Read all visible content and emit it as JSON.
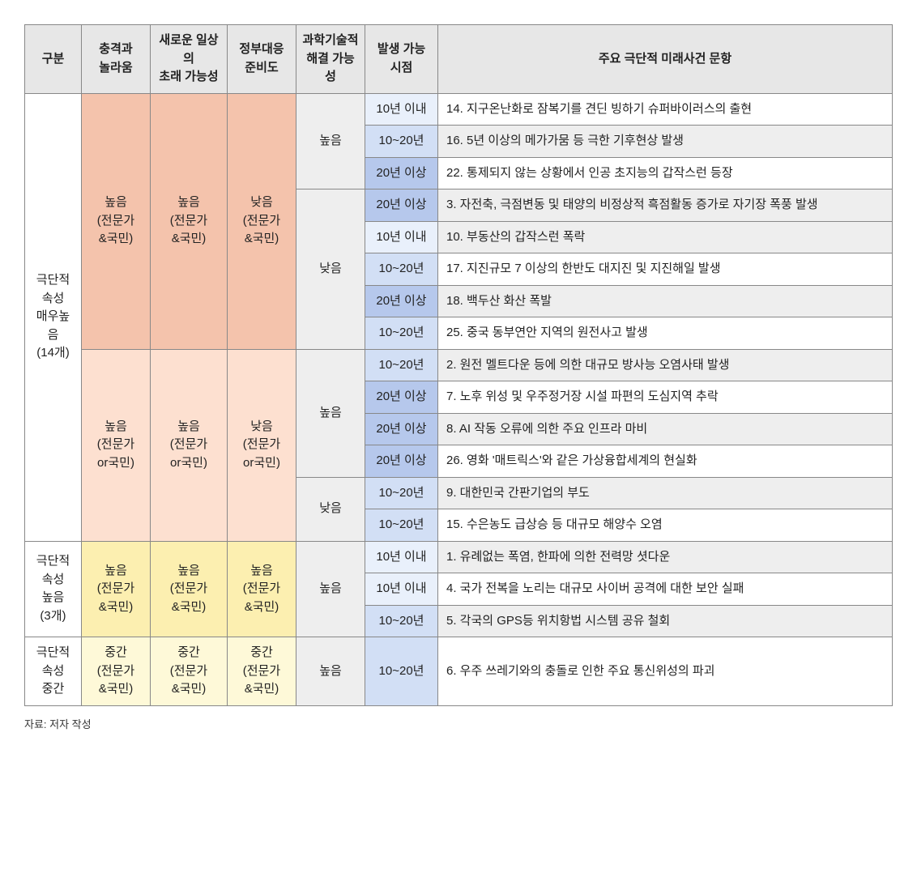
{
  "headers": {
    "gubun": "구분",
    "colA": "충격과\n놀라움",
    "colB": "새로운 일상의\n초래 가능성",
    "colC": "정부대응\n준비도",
    "colD": "과학기술적\n해결 가능성",
    "time": "발생 가능\n시점",
    "item": "주요 극단적 미래사건 문항"
  },
  "blocks": [
    {
      "gubun": "극단적\n속성\n매우높\n음\n(14개)",
      "subblocks": [
        {
          "cell_class": "bg-salmon",
          "a": "높음\n(전문가\n&국민)",
          "b": "높음\n(전문가\n&국민)",
          "c": "낮음\n(전문가\n&국민)",
          "dgroups": [
            {
              "cell_class": "bg-gray-lite",
              "d": "높음",
              "rows": [
                {
                  "time": "10년 이내",
                  "tclass": "t-lite",
                  "iclass": "item-lite",
                  "text": "14. 지구온난화로 잠복기를 견딘 빙하기 슈퍼바이러스의 출현"
                },
                {
                  "time": "10~20년",
                  "tclass": "t-med",
                  "iclass": "item-dark",
                  "text": "16. 5년 이상의 메가가뭄 등 극한 기후현상 발생"
                },
                {
                  "time": "20년 이상",
                  "tclass": "t-dark",
                  "iclass": "item-lite",
                  "text": "22. 통제되지 않는 상황에서 인공 초지능의 갑작스런 등장"
                }
              ]
            },
            {
              "cell_class": "bg-gray-lite",
              "d": "낮음",
              "rows": [
                {
                  "time": "20년 이상",
                  "tclass": "t-dark",
                  "iclass": "item-dark",
                  "text": "3. 자전축, 극점변동 및 태양의 비정상적 흑점활동 증가로 자기장 폭풍 발생"
                },
                {
                  "time": "10년 이내",
                  "tclass": "t-lite",
                  "iclass": "item-dark",
                  "text": "10. 부동산의 갑작스런 폭락"
                },
                {
                  "time": "10~20년",
                  "tclass": "t-med",
                  "iclass": "item-lite",
                  "text": "17. 지진규모 7 이상의 한반도 대지진 및 지진해일 발생"
                },
                {
                  "time": "20년 이상",
                  "tclass": "t-dark",
                  "iclass": "item-dark",
                  "text": "18. 백두산 화산 폭발"
                },
                {
                  "time": "10~20년",
                  "tclass": "t-med",
                  "iclass": "item-lite",
                  "text": "25. 중국 동부연안 지역의 원전사고 발생"
                }
              ]
            }
          ]
        },
        {
          "cell_class": "bg-peach",
          "a": "높음\n(전문가\nor국민)",
          "b": "높음\n(전문가\nor국민)",
          "c": "낮음\n(전문가\nor국민)",
          "dgroups": [
            {
              "cell_class": "bg-gray-lite",
              "d": "높음",
              "rows": [
                {
                  "time": "10~20년",
                  "tclass": "t-med",
                  "iclass": "item-dark",
                  "text": "2. 원전 멜트다운 등에 의한 대규모 방사능 오염사태 발생"
                },
                {
                  "time": "20년 이상",
                  "tclass": "t-dark",
                  "iclass": "item-lite",
                  "text": "7. 노후 위성 및 우주정거장 시설 파편의 도심지역 추락"
                },
                {
                  "time": "20년 이상",
                  "tclass": "t-dark",
                  "iclass": "item-dark",
                  "text": "8. AI 작동 오류에 의한 주요 인프라 마비"
                },
                {
                  "time": "20년 이상",
                  "tclass": "t-dark",
                  "iclass": "item-lite",
                  "text": "26. 영화 '매트릭스'와 같은 가상융합세계의 현실화"
                }
              ]
            },
            {
              "cell_class": "bg-gray-lite",
              "d": "낮음",
              "rows": [
                {
                  "time": "10~20년",
                  "tclass": "t-med",
                  "iclass": "item-dark",
                  "text": "9. 대한민국 간판기업의 부도"
                },
                {
                  "time": "10~20년",
                  "tclass": "t-med",
                  "iclass": "item-lite",
                  "text": "15. 수은농도 급상승 등 대규모 해양수 오염"
                }
              ]
            }
          ]
        }
      ]
    },
    {
      "gubun": "극단적\n속성\n높음\n(3개)",
      "subblocks": [
        {
          "cell_class": "bg-yellow",
          "a": "높음\n(전문가\n&국민)",
          "b": "높음\n(전문가\n&국민)",
          "c": "높음\n(전문가\n&국민)",
          "dgroups": [
            {
              "cell_class": "bg-gray-lite",
              "d": "높음",
              "rows": [
                {
                  "time": "10년 이내",
                  "tclass": "t-lite",
                  "iclass": "item-dark",
                  "text": "1. 유례없는 폭염, 한파에 의한 전력망 셧다운"
                },
                {
                  "time": "10년 이내",
                  "tclass": "t-lite",
                  "iclass": "item-lite",
                  "text": "4. 국가 전복을 노리는 대규모 사이버 공격에 대한 보안 실패"
                },
                {
                  "time": "10~20년",
                  "tclass": "t-med",
                  "iclass": "item-dark",
                  "text": "5. 각국의 GPS등 위치항법 시스템 공유 철회"
                }
              ]
            }
          ]
        }
      ]
    },
    {
      "gubun": "극단적\n속성\n중간",
      "subblocks": [
        {
          "cell_class": "bg-lemon",
          "a": "중간\n(전문가\n&국민)",
          "b": "중간\n(전문가\n&국민)",
          "c": "중간\n(전문가\n&국민)",
          "dgroups": [
            {
              "cell_class": "bg-gray-lite",
              "d": "높음",
              "rows": [
                {
                  "time": "10~20년",
                  "tclass": "t-med",
                  "iclass": "item-lite",
                  "text": "6. 우주 쓰레기와의 충돌로 인한 주요 통신위성의 파괴"
                }
              ]
            }
          ]
        }
      ]
    }
  ],
  "source": "자료: 저자 작성"
}
